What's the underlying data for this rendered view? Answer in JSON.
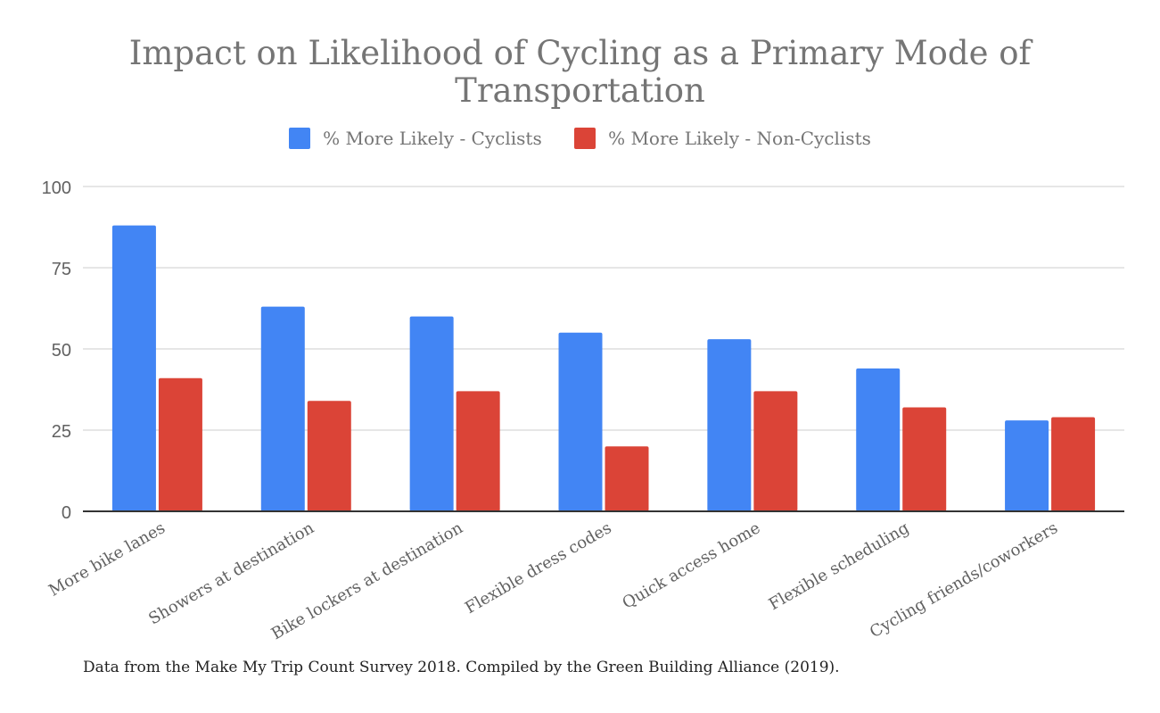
{
  "chart_data": {
    "type": "bar",
    "title_lines": [
      "Impact on Likelihood of Cycling as a Primary Mode of",
      "Transportation"
    ],
    "categories": [
      "More bike lanes",
      "Showers at destination",
      "Bike lockers at destination",
      "Flexible dress codes",
      "Quick access home",
      "Flexible scheduling",
      "Cycling friends/coworkers"
    ],
    "series": [
      {
        "name": "% More Likely - Cyclists",
        "color": "#4285f4",
        "values": [
          88,
          63,
          60,
          55,
          53,
          44,
          28
        ]
      },
      {
        "name": "% More Likely - Non-Cyclists",
        "color": "#db4437",
        "values": [
          41,
          34,
          37,
          20,
          37,
          32,
          29
        ]
      }
    ],
    "ylim": [
      0,
      100
    ],
    "yticks": [
      "0",
      "25",
      "50",
      "75",
      "100"
    ],
    "grid": true,
    "legend_position": "top",
    "xlabel": "",
    "ylabel": ""
  },
  "caption": "Data from the Make My Trip Count Survey 2018. Compiled by the Green Building Alliance (2019)."
}
